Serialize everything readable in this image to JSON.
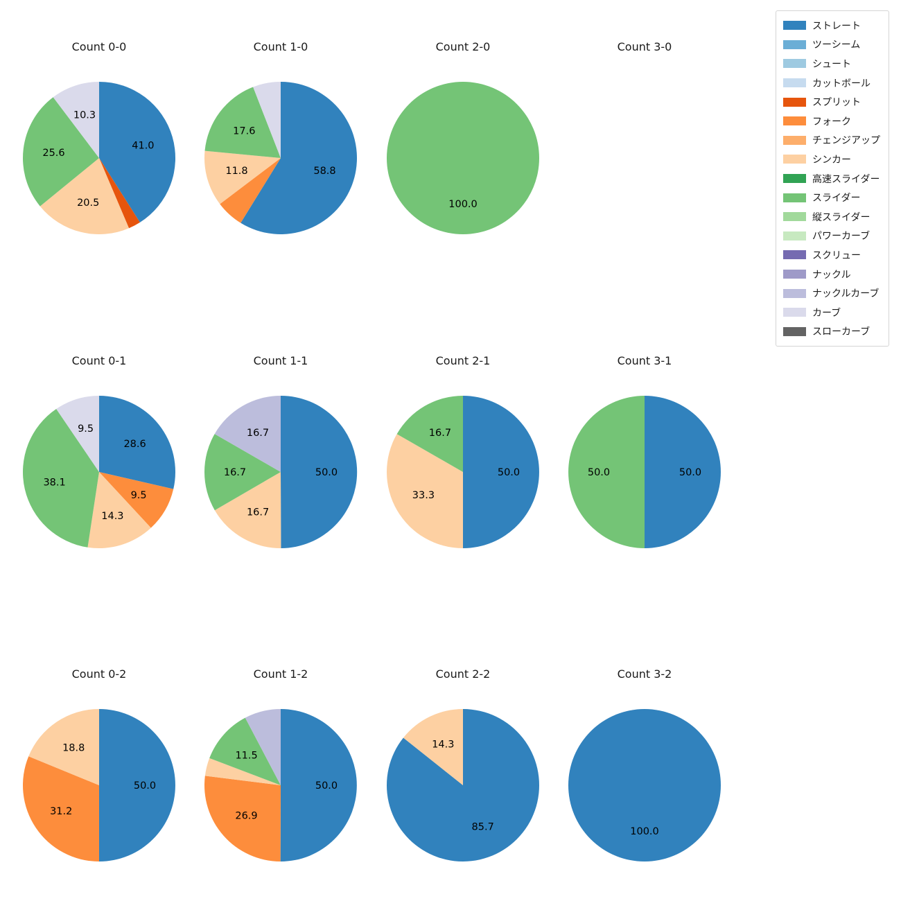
{
  "legend": {
    "items": [
      {
        "label": "ストレート",
        "color": "#3182bd"
      },
      {
        "label": "ツーシーム",
        "color": "#6baed6"
      },
      {
        "label": "シュート",
        "color": "#9ecae1"
      },
      {
        "label": "カットボール",
        "color": "#c6dbef"
      },
      {
        "label": "スプリット",
        "color": "#e6550d"
      },
      {
        "label": "フォーク",
        "color": "#fd8d3c"
      },
      {
        "label": "チェンジアップ",
        "color": "#fdae6b"
      },
      {
        "label": "シンカー",
        "color": "#fdd0a2"
      },
      {
        "label": "高速スライダー",
        "color": "#31a354"
      },
      {
        "label": "スライダー",
        "color": "#74c476"
      },
      {
        "label": "縦スライダー",
        "color": "#a1d99b"
      },
      {
        "label": "パワーカーブ",
        "color": "#c7e9c0"
      },
      {
        "label": "スクリュー",
        "color": "#756bb1"
      },
      {
        "label": "ナックル",
        "color": "#9e9ac8"
      },
      {
        "label": "ナックルカーブ",
        "color": "#bcbddc"
      },
      {
        "label": "カーブ",
        "color": "#dadaeb"
      },
      {
        "label": "スローカーブ",
        "color": "#636363"
      }
    ]
  },
  "chart_data": [
    {
      "type": "pie",
      "title": "Count 0-0",
      "slices": [
        {
          "name": "ストレート",
          "value": 41.0,
          "label": "41.0"
        },
        {
          "name": "スプリット",
          "value": 2.6,
          "label": ""
        },
        {
          "name": "シンカー",
          "value": 20.5,
          "label": "20.5"
        },
        {
          "name": "スライダー",
          "value": 25.6,
          "label": "25.6"
        },
        {
          "name": "カーブ",
          "value": 10.3,
          "label": "10.3"
        }
      ]
    },
    {
      "type": "pie",
      "title": "Count 1-0",
      "slices": [
        {
          "name": "ストレート",
          "value": 58.8,
          "label": "58.8"
        },
        {
          "name": "フォーク",
          "value": 5.9,
          "label": ""
        },
        {
          "name": "シンカー",
          "value": 11.8,
          "label": "11.8"
        },
        {
          "name": "スライダー",
          "value": 17.6,
          "label": "17.6"
        },
        {
          "name": "カーブ",
          "value": 5.9,
          "label": ""
        }
      ]
    },
    {
      "type": "pie",
      "title": "Count 2-0",
      "slices": [
        {
          "name": "スライダー",
          "value": 100.0,
          "label": "100.0"
        }
      ]
    },
    {
      "type": "pie",
      "title": "Count 3-0",
      "slices": []
    },
    {
      "type": "pie",
      "title": "Count 0-1",
      "slices": [
        {
          "name": "ストレート",
          "value": 28.6,
          "label": "28.6"
        },
        {
          "name": "フォーク",
          "value": 9.5,
          "label": "9.5"
        },
        {
          "name": "シンカー",
          "value": 14.3,
          "label": "14.3"
        },
        {
          "name": "スライダー",
          "value": 38.1,
          "label": "38.1"
        },
        {
          "name": "カーブ",
          "value": 9.5,
          "label": "9.5"
        }
      ]
    },
    {
      "type": "pie",
      "title": "Count 1-1",
      "slices": [
        {
          "name": "ストレート",
          "value": 50.0,
          "label": "50.0"
        },
        {
          "name": "シンカー",
          "value": 16.7,
          "label": "16.7"
        },
        {
          "name": "スライダー",
          "value": 16.7,
          "label": "16.7"
        },
        {
          "name": "ナックルカーブ",
          "value": 16.7,
          "label": "16.7"
        }
      ]
    },
    {
      "type": "pie",
      "title": "Count 2-1",
      "slices": [
        {
          "name": "ストレート",
          "value": 50.0,
          "label": "50.0"
        },
        {
          "name": "シンカー",
          "value": 33.3,
          "label": "33.3"
        },
        {
          "name": "スライダー",
          "value": 16.7,
          "label": "16.7"
        }
      ]
    },
    {
      "type": "pie",
      "title": "Count 3-1",
      "slices": [
        {
          "name": "ストレート",
          "value": 50.0,
          "label": "50.0"
        },
        {
          "name": "スライダー",
          "value": 50.0,
          "label": "50.0"
        }
      ]
    },
    {
      "type": "pie",
      "title": "Count 0-2",
      "slices": [
        {
          "name": "ストレート",
          "value": 50.0,
          "label": "50.0"
        },
        {
          "name": "フォーク",
          "value": 31.2,
          "label": "31.2"
        },
        {
          "name": "シンカー",
          "value": 18.8,
          "label": "18.8"
        }
      ]
    },
    {
      "type": "pie",
      "title": "Count 1-2",
      "slices": [
        {
          "name": "ストレート",
          "value": 50.0,
          "label": "50.0"
        },
        {
          "name": "フォーク",
          "value": 26.9,
          "label": "26.9"
        },
        {
          "name": "シンカー",
          "value": 3.8,
          "label": ""
        },
        {
          "name": "スライダー",
          "value": 11.5,
          "label": "11.5"
        },
        {
          "name": "ナックルカーブ",
          "value": 7.7,
          "label": ""
        }
      ]
    },
    {
      "type": "pie",
      "title": "Count 2-2",
      "slices": [
        {
          "name": "ストレート",
          "value": 85.7,
          "label": "85.7"
        },
        {
          "name": "シンカー",
          "value": 14.3,
          "label": "14.3"
        }
      ]
    },
    {
      "type": "pie",
      "title": "Count 3-2",
      "slices": [
        {
          "name": "ストレート",
          "value": 100.0,
          "label": "100.0"
        }
      ]
    }
  ]
}
